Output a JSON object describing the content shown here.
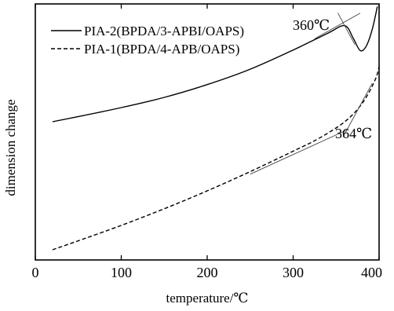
{
  "chart_data": {
    "type": "line",
    "xlabel": "temperature/℃",
    "ylabel": "dimension change",
    "xlim": [
      0,
      400
    ],
    "ylim": [
      0,
      1
    ],
    "x_ticks": [
      0,
      100,
      200,
      300,
      400
    ],
    "grid": false,
    "legend_position": "top-left",
    "series": [
      {
        "name": "PIA-2(BPDA/3-APBI/OAPS)",
        "style": "solid",
        "color": "#000000",
        "x": [
          20,
          50,
          100,
          150,
          200,
          250,
          300,
          340,
          360,
          370,
          378,
          385,
          392,
          398
        ],
        "y": [
          0.54,
          0.56,
          0.595,
          0.635,
          0.685,
          0.745,
          0.82,
          0.885,
          0.915,
          0.865,
          0.818,
          0.835,
          0.9,
          0.99
        ]
      },
      {
        "name": "PIA-1(BPDA/4-APB/OAPS)",
        "style": "dashed",
        "color": "#000000",
        "x": [
          20,
          50,
          100,
          150,
          200,
          250,
          300,
          330,
          360,
          380,
          395,
          400
        ],
        "y": [
          0.04,
          0.075,
          0.135,
          0.2,
          0.27,
          0.345,
          0.425,
          0.475,
          0.54,
          0.61,
          0.7,
          0.755
        ]
      }
    ],
    "annotations": [
      {
        "text": "360℃",
        "at_x": 360,
        "tangents": [
          {
            "x": [
              325,
              378
            ],
            "y": [
              0.864,
              0.964
            ]
          },
          {
            "x": [
              352,
              372
            ],
            "y": [
              0.965,
              0.84
            ]
          }
        ]
      },
      {
        "text": "364℃",
        "at_x": 364,
        "tangents": [
          {
            "x": [
              250,
              364
            ],
            "y": [
              0.335,
              0.51
            ]
          },
          {
            "x": [
              358,
              392
            ],
            "y": [
              0.48,
              0.69
            ]
          }
        ]
      }
    ]
  }
}
